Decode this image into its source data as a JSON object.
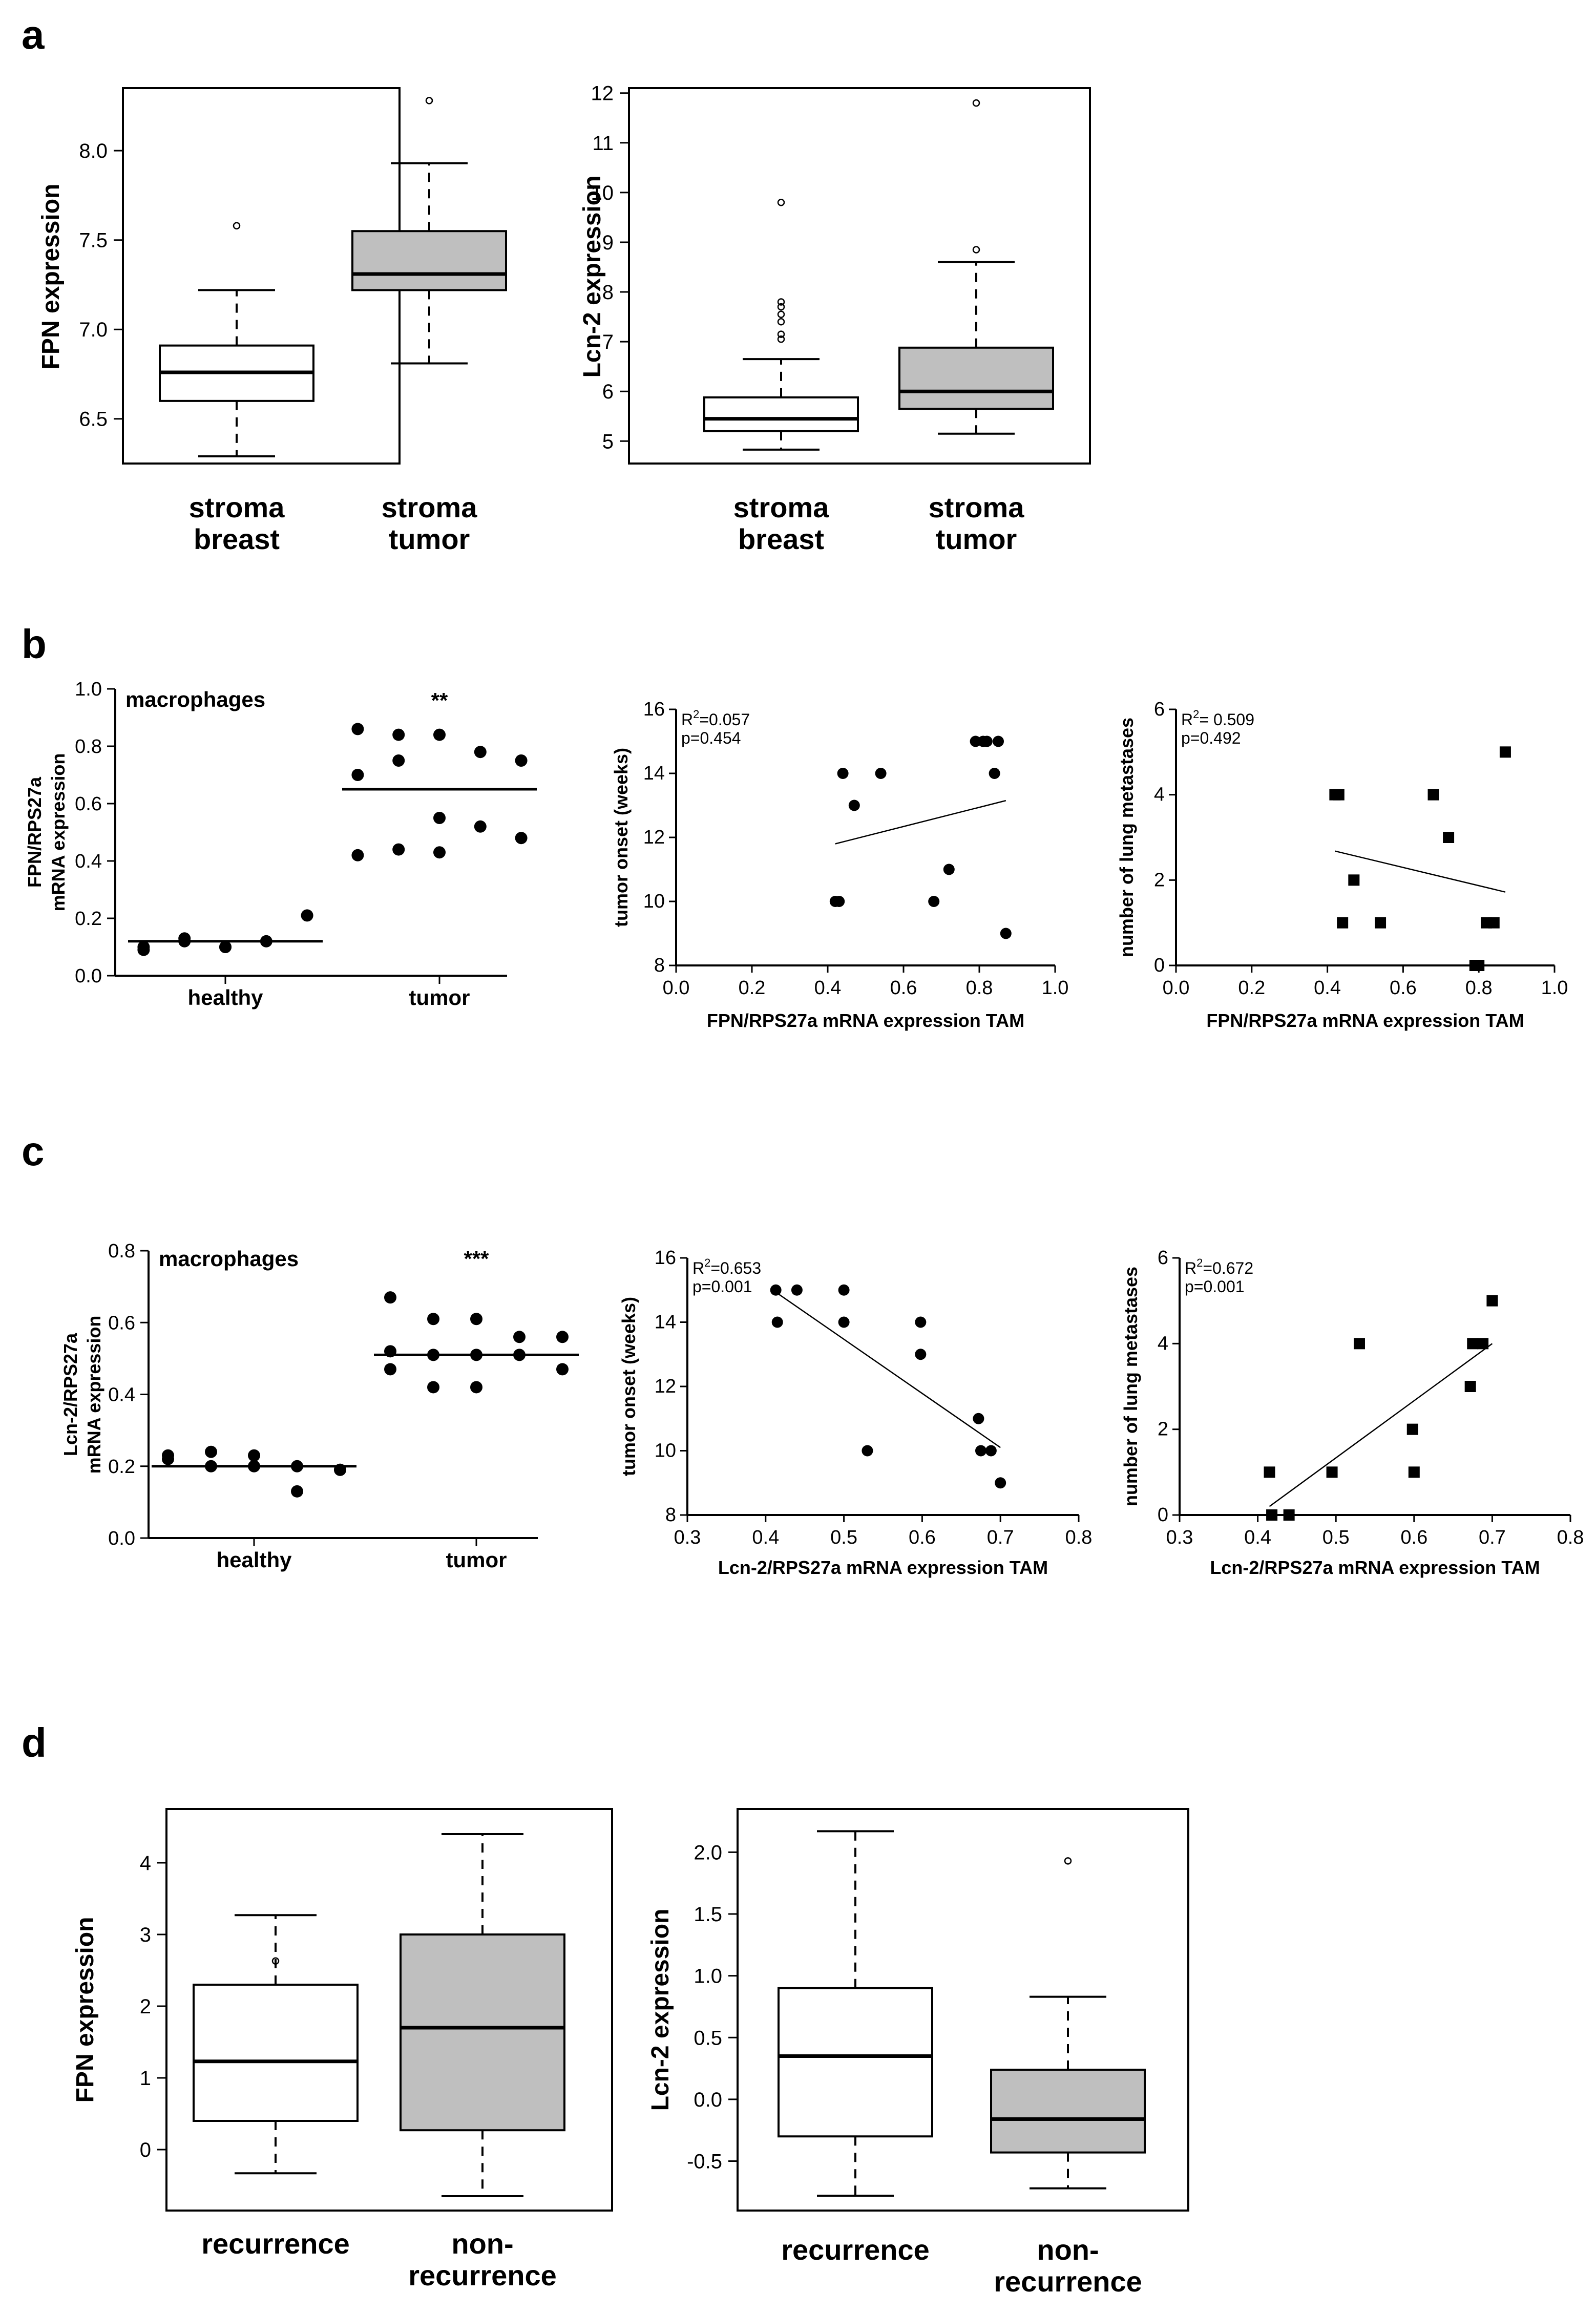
{
  "panel_labels": [
    "a",
    "b",
    "c",
    "d"
  ],
  "chart_data": [
    {
      "id": "a1",
      "type": "boxplot",
      "ylabel": "FPN expression",
      "yticks": [
        "6.5",
        "7.0",
        "7.5",
        "8.0"
      ],
      "ylim": [
        6.25,
        8.35
      ],
      "categories": [
        "stroma\nbreast",
        "stroma\ntumor"
      ],
      "boxes": [
        {
          "fill": "#ffffff",
          "whislo": 6.29,
          "q1": 6.6,
          "med": 6.76,
          "q3": 6.91,
          "whishi": 7.22,
          "fliers": [
            7.58
          ]
        },
        {
          "fill": "#bfbfbf",
          "whislo": 6.81,
          "q1": 7.22,
          "med": 7.31,
          "q3": 7.55,
          "whishi": 7.93,
          "fliers": [
            8.28
          ]
        }
      ]
    },
    {
      "id": "a2",
      "type": "boxplot",
      "ylabel": "Lcn-2 expression",
      "yticks": [
        "5",
        "6",
        "7",
        "8",
        "9",
        "10",
        "11",
        "12"
      ],
      "ylim": [
        4.55,
        12.1
      ],
      "categories": [
        "stroma\nbreast",
        "stroma\ntumor"
      ],
      "boxes": [
        {
          "fill": "#ffffff",
          "whislo": 4.83,
          "q1": 5.2,
          "med": 5.45,
          "q3": 5.88,
          "whishi": 6.65,
          "fliers": [
            7.05,
            7.15,
            7.4,
            7.55,
            7.7,
            7.8,
            9.8
          ]
        },
        {
          "fill": "#bfbfbf",
          "whislo": 5.15,
          "q1": 5.65,
          "med": 6.0,
          "q3": 6.88,
          "whishi": 8.6,
          "fliers": [
            8.85,
            11.8
          ]
        }
      ]
    },
    {
      "id": "b1",
      "type": "dot",
      "title": "macrophages",
      "significance": "**",
      "ylabel": "FPN/RPS27a\nmRNA expression",
      "yticks": [
        "0.0",
        "0.2",
        "0.4",
        "0.6",
        "0.8",
        "1.0"
      ],
      "ylim": [
        0,
        1.0
      ],
      "categories": [
        "healthy",
        "tumor"
      ],
      "groups": [
        {
          "mean": 0.12,
          "points": [
            0.1,
            0.13,
            0.1,
            0.12,
            0.21,
            0.09,
            0.12,
            0.1
          ]
        },
        {
          "mean": 0.65,
          "points": [
            0.86,
            0.84,
            0.84,
            0.78,
            0.75,
            0.7,
            0.75,
            0.55,
            0.52,
            0.48,
            0.42,
            0.44,
            0.43
          ]
        }
      ]
    },
    {
      "id": "b2",
      "type": "scatter",
      "marker": "circle",
      "xlabel": "FPN/RPS27a mRNA expression TAM",
      "ylabel": "tumor onset (weeks)",
      "stat_r2": "R2=0.057",
      "stat_p": "p=0.454",
      "xticks": [
        "0.0",
        "0.2",
        "0.4",
        "0.6",
        "0.8",
        "1.0"
      ],
      "yticks": [
        "8",
        "10",
        "12",
        "14",
        "16"
      ],
      "xlim": [
        0,
        1
      ],
      "ylim": [
        8,
        16
      ],
      "x": [
        0.42,
        0.43,
        0.44,
        0.47,
        0.54,
        0.68,
        0.72,
        0.79,
        0.81,
        0.82,
        0.84,
        0.85,
        0.87
      ],
      "y": [
        10,
        10,
        14,
        13,
        14,
        10,
        11,
        15,
        15,
        15,
        14,
        15,
        9
      ],
      "fit": {
        "x": [
          0.42,
          0.87
        ],
        "y": [
          11.8,
          13.15
        ]
      }
    },
    {
      "id": "b3",
      "type": "scatter",
      "marker": "square",
      "xlabel": "FPN/RPS27a mRNA expression TAM",
      "ylabel": "number of lung metastases",
      "stat_r2": "R2= 0.509",
      "stat_p": "p=0.492",
      "xticks": [
        "0.0",
        "0.2",
        "0.4",
        "0.6",
        "0.8",
        "1.0"
      ],
      "yticks": [
        "0",
        "2",
        "4",
        "6"
      ],
      "xlim": [
        0,
        1
      ],
      "ylim": [
        0,
        6
      ],
      "x": [
        0.42,
        0.43,
        0.44,
        0.47,
        0.54,
        0.68,
        0.72,
        0.79,
        0.8,
        0.82,
        0.84,
        0.87
      ],
      "y": [
        4,
        4,
        1,
        2,
        1,
        4,
        3,
        0,
        0,
        1,
        1,
        5
      ],
      "fit": {
        "x": [
          0.42,
          0.87
        ],
        "y": [
          2.68,
          1.72
        ]
      }
    },
    {
      "id": "c1",
      "type": "dot",
      "title": "macrophages",
      "significance": "***",
      "ylabel": "Lcn-2/RPS27a\nmRNA expression",
      "yticks": [
        "0.0",
        "0.2",
        "0.4",
        "0.6",
        "0.8"
      ],
      "ylim": [
        0,
        0.8
      ],
      "categories": [
        "healthy",
        "tumor"
      ],
      "groups": [
        {
          "mean": 0.2,
          "points": [
            0.23,
            0.24,
            0.23,
            0.2,
            0.19,
            0.22,
            0.2,
            0.2,
            0.13,
            0.19
          ]
        },
        {
          "mean": 0.51,
          "points": [
            0.67,
            0.61,
            0.61,
            0.56,
            0.56,
            0.52,
            0.51,
            0.51,
            0.51,
            0.47,
            0.47,
            0.42,
            0.42
          ]
        }
      ]
    },
    {
      "id": "c2",
      "type": "scatter",
      "marker": "circle",
      "xlabel": "Lcn-2/RPS27a mRNA expression TAM",
      "ylabel": "tumor onset (weeks)",
      "stat_r2": "R2=0.653",
      "stat_p": "p=0.001",
      "xticks": [
        "0.3",
        "0.4",
        "0.5",
        "0.6",
        "0.7",
        "0.8"
      ],
      "yticks": [
        "8",
        "10",
        "12",
        "14",
        "16"
      ],
      "xlim": [
        0.3,
        0.8
      ],
      "ylim": [
        8,
        16
      ],
      "x": [
        0.413,
        0.415,
        0.44,
        0.5,
        0.5,
        0.53,
        0.598,
        0.598,
        0.672,
        0.675,
        0.688,
        0.7
      ],
      "y": [
        15,
        14,
        15,
        15,
        14,
        10,
        14,
        13,
        11,
        10,
        10,
        9
      ],
      "fit": {
        "x": [
          0.415,
          0.7
        ],
        "y": [
          14.9,
          10.1
        ]
      }
    },
    {
      "id": "c3",
      "type": "scatter",
      "marker": "square",
      "xlabel": "Lcn-2/RPS27a mRNA expression TAM",
      "ylabel": "number of lung metastases",
      "stat_r2": "R2=0.672",
      "stat_p": "p=0.001",
      "xticks": [
        "0.3",
        "0.4",
        "0.5",
        "0.6",
        "0.7",
        "0.8"
      ],
      "yticks": [
        "0",
        "2",
        "4",
        "6"
      ],
      "xlim": [
        0.3,
        0.8
      ],
      "ylim": [
        0,
        6
      ],
      "x": [
        0.415,
        0.418,
        0.44,
        0.495,
        0.53,
        0.598,
        0.6,
        0.672,
        0.675,
        0.688,
        0.7
      ],
      "y": [
        1,
        0,
        0,
        1,
        4,
        2,
        1,
        3,
        4,
        4,
        5
      ],
      "fit": {
        "x": [
          0.415,
          0.7
        ],
        "y": [
          0.2,
          4.0
        ]
      }
    },
    {
      "id": "d1",
      "type": "boxplot",
      "ylabel": "FPN expression",
      "yticks": [
        "0",
        "1",
        "2",
        "3",
        "4"
      ],
      "ylim": [
        -0.85,
        4.75
      ],
      "categories": [
        "recurrence",
        "non-\nrecurrence"
      ],
      "boxes": [
        {
          "fill": "#ffffff",
          "whislo": -0.33,
          "q1": 0.4,
          "med": 1.23,
          "q3": 2.3,
          "whishi": 3.27,
          "fliers": [
            2.63
          ]
        },
        {
          "fill": "#bfbfbf",
          "whislo": -0.65,
          "q1": 0.27,
          "med": 1.7,
          "q3": 3.0,
          "whishi": 4.4,
          "fliers": []
        }
      ]
    },
    {
      "id": "d2",
      "type": "boxplot",
      "ylabel": "Lcn-2 expression",
      "yticks": [
        "-0.5",
        "0.0",
        "0.5",
        "1.0",
        "1.5",
        "2.0"
      ],
      "ylim": [
        -0.9,
        2.35
      ],
      "categories": [
        "recurrence",
        "non-\nrecurrence"
      ],
      "boxes": [
        {
          "fill": "#ffffff",
          "whislo": -0.78,
          "q1": -0.3,
          "med": 0.35,
          "q3": 0.9,
          "whishi": 2.17,
          "fliers": []
        },
        {
          "fill": "#bfbfbf",
          "whislo": -0.72,
          "q1": -0.43,
          "med": -0.16,
          "q3": 0.24,
          "whishi": 0.83,
          "fliers": [
            1.93
          ]
        }
      ]
    }
  ]
}
